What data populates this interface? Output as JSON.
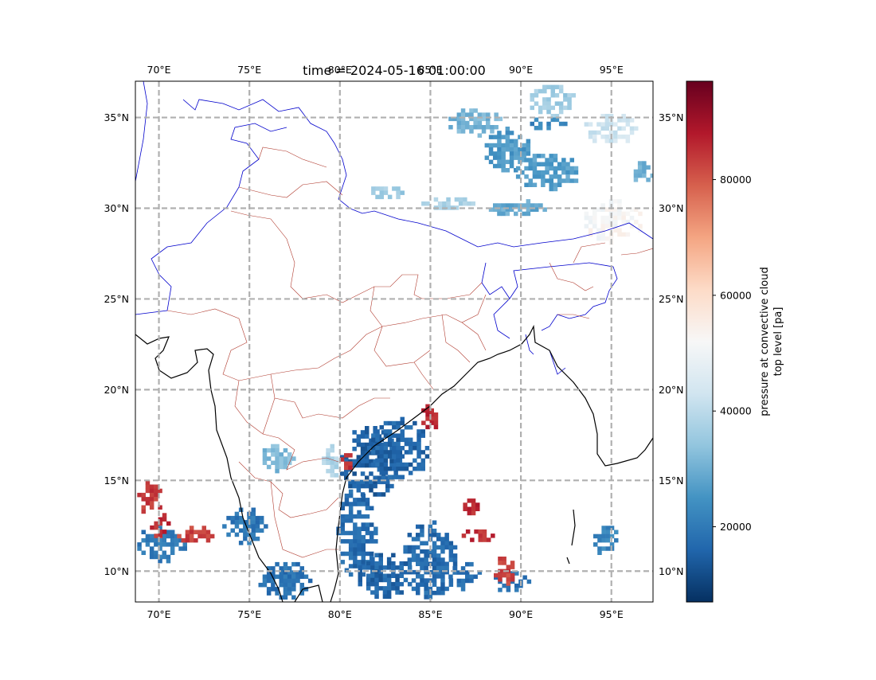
{
  "map": {
    "title": "time = 2024-05-16 01:00:00",
    "extent": {
      "lon": [
        68.7,
        97.3
      ],
      "lat": [
        8.3,
        37.0
      ]
    },
    "lon_ticks": [
      {
        "value": 70,
        "label": "70°E"
      },
      {
        "value": 75,
        "label": "75°E"
      },
      {
        "value": 80,
        "label": "80°E"
      },
      {
        "value": 85,
        "label": "85°E"
      },
      {
        "value": 90,
        "label": "90°E"
      },
      {
        "value": 95,
        "label": "95°E"
      }
    ],
    "lat_ticks": [
      {
        "value": 10,
        "label": "10°N"
      },
      {
        "value": 15,
        "label": "15°N"
      },
      {
        "value": 20,
        "label": "20°N"
      },
      {
        "value": 25,
        "label": "25°N"
      },
      {
        "value": 30,
        "label": "30°N"
      },
      {
        "value": 35,
        "label": "35°N"
      }
    ],
    "gridlines": true,
    "colors": {
      "coastline": "#000000",
      "country_borders": "#0000cc",
      "state_borders": "#b03a2e",
      "gridline": "#b0b0b0"
    }
  },
  "colorbar": {
    "label_line1": "pressure at convective cloud",
    "label_line2": "top level [pa]",
    "vmin": 7000,
    "vmax": 97000,
    "ticks": [
      {
        "value": 20000,
        "label": "20000"
      },
      {
        "value": 40000,
        "label": "40000"
      },
      {
        "value": 60000,
        "label": "60000"
      },
      {
        "value": 80000,
        "label": "80000"
      }
    ],
    "colormap": "RdBu_r",
    "stops": [
      "#053061",
      "#2166ac",
      "#4393c3",
      "#92c5de",
      "#d1e5f0",
      "#f7f7f7",
      "#fddbc7",
      "#f4a582",
      "#d6604d",
      "#b2182b",
      "#67001f"
    ]
  },
  "field": {
    "variable": "pressure at convective cloud top level",
    "units": "pa",
    "regions": [
      {
        "lon": [
          80.0,
          83.5
        ],
        "lat": [
          14.0,
          18.0
        ],
        "value": 15000
      },
      {
        "lon": [
          79.8,
          82.0
        ],
        "lat": [
          9.5,
          14.5
        ],
        "value": 17000
      },
      {
        "lon": [
          81.5,
          85.0
        ],
        "lat": [
          15.0,
          18.5
        ],
        "value": 16000
      },
      {
        "lon": [
          83.5,
          86.5
        ],
        "lat": [
          8.5,
          12.8
        ],
        "value": 17000
      },
      {
        "lon": [
          81.0,
          84.0
        ],
        "lat": [
          8.5,
          11.0
        ],
        "value": 16000
      },
      {
        "lon": [
          86.0,
          88.0
        ],
        "lat": [
          9.0,
          10.5
        ],
        "value": 18000
      },
      {
        "lon": [
          88.5,
          90.5
        ],
        "lat": [
          8.8,
          10.0
        ],
        "value": 19000
      },
      {
        "lon": [
          75.5,
          78.5
        ],
        "lat": [
          8.5,
          10.5
        ],
        "value": 18000
      },
      {
        "lon": [
          73.5,
          76.0
        ],
        "lat": [
          11.5,
          13.5
        ],
        "value": 19000
      },
      {
        "lon": [
          68.8,
          71.5
        ],
        "lat": [
          10.5,
          12.5
        ],
        "value": 20000
      },
      {
        "lon": [
          68.8,
          70.2
        ],
        "lat": [
          13.0,
          15.0
        ],
        "value": 84000
      },
      {
        "lon": [
          69.5,
          70.7
        ],
        "lat": [
          11.8,
          13.2
        ],
        "value": 85000
      },
      {
        "lon": [
          71.0,
          73.0
        ],
        "lat": [
          11.5,
          12.5
        ],
        "value": 83000
      },
      {
        "lon": [
          84.5,
          85.5
        ],
        "lat": [
          17.8,
          19.2
        ],
        "value": 86000
      },
      {
        "lon": [
          86.5,
          88.5
        ],
        "lat": [
          11.5,
          12.3
        ],
        "value": 85000
      },
      {
        "lon": [
          88.5,
          89.8
        ],
        "lat": [
          9.0,
          10.8
        ],
        "value": 83000
      },
      {
        "lon": [
          86.8,
          87.8
        ],
        "lat": [
          12.8,
          14.0
        ],
        "value": 86000
      },
      {
        "lon": [
          80.0,
          80.8
        ],
        "lat": [
          15.5,
          16.5
        ],
        "value": 84000
      },
      {
        "lon": [
          88.0,
          90.5
        ],
        "lat": [
          32.0,
          34.5
        ],
        "value": 26000
      },
      {
        "lon": [
          89.5,
          93.5
        ],
        "lat": [
          31.0,
          33.0
        ],
        "value": 27000
      },
      {
        "lon": [
          86.0,
          89.0
        ],
        "lat": [
          34.0,
          35.5
        ],
        "value": 31000
      },
      {
        "lon": [
          88.0,
          91.5
        ],
        "lat": [
          29.5,
          30.5
        ],
        "value": 29000
      },
      {
        "lon": [
          84.5,
          87.5
        ],
        "lat": [
          29.8,
          30.6
        ],
        "value": 38000
      },
      {
        "lon": [
          81.5,
          83.5
        ],
        "lat": [
          30.5,
          31.2
        ],
        "value": 36000
      },
      {
        "lon": [
          90.5,
          93.0
        ],
        "lat": [
          35.0,
          36.8
        ],
        "value": 36000
      },
      {
        "lon": [
          93.5,
          96.5
        ],
        "lat": [
          33.5,
          35.2
        ],
        "value": 43000
      },
      {
        "lon": [
          93.5,
          96.8
        ],
        "lat": [
          28.0,
          30.5
        ],
        "value": 52000
      },
      {
        "lon": [
          96.0,
          97.3
        ],
        "lat": [
          31.2,
          32.6
        ],
        "value": 30000
      },
      {
        "lon": [
          75.5,
          77.5
        ],
        "lat": [
          15.5,
          17.0
        ],
        "value": 32000
      },
      {
        "lon": [
          79.0,
          80.0
        ],
        "lat": [
          15.0,
          17.0
        ],
        "value": 38000
      },
      {
        "lon": [
          94.0,
          95.5
        ],
        "lat": [
          10.8,
          12.5
        ],
        "value": 22000
      },
      {
        "lon": [
          90.5,
          92.5
        ],
        "lat": [
          34.3,
          35.0
        ],
        "value": 22000
      }
    ]
  }
}
